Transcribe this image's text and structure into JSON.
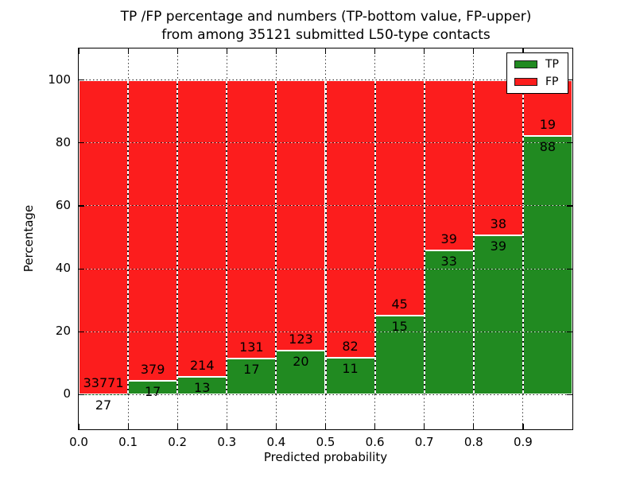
{
  "title": {
    "line1": "TP /FP percentage and numbers (TP-bottom value, FP-upper)",
    "line2": "from among 35121 submitted L50-type contacts"
  },
  "chart_data": {
    "type": "bar",
    "stacked": true,
    "title": "TP /FP percentage and numbers (TP-bottom value, FP-upper)\nfrom among 35121 submitted L50-type contacts",
    "xlabel": "Predicted probability",
    "ylabel": "Percentage",
    "xlim": [
      0.0,
      1.0
    ],
    "ylim": [
      -11,
      110
    ],
    "grid": true,
    "legend_position": "upper right",
    "total_contacts": 35121,
    "categories": [
      "0.0-0.1",
      "0.1-0.2",
      "0.2-0.3",
      "0.3-0.4",
      "0.4-0.5",
      "0.5-0.6",
      "0.6-0.7",
      "0.7-0.8",
      "0.8-0.9",
      "0.9-1.0"
    ],
    "x_tick_labels": [
      "0.0",
      "0.1",
      "0.2",
      "0.3",
      "0.4",
      "0.5",
      "0.6",
      "0.7",
      "0.8",
      "0.9"
    ],
    "y_ticks": [
      0,
      20,
      40,
      60,
      80,
      100
    ],
    "series": [
      {
        "name": "TP",
        "color": "#218a21",
        "counts": [
          27,
          17,
          13,
          17,
          20,
          11,
          15,
          33,
          39,
          88
        ]
      },
      {
        "name": "FP",
        "color": "#fc1d1d",
        "counts": [
          33771,
          379,
          214,
          131,
          123,
          82,
          45,
          39,
          38,
          19
        ]
      }
    ],
    "tp_percent": [
      0.08,
      4.29,
      5.73,
      11.49,
      13.99,
      11.83,
      25.0,
      45.83,
      50.65,
      82.24
    ],
    "fp_percent": [
      99.92,
      95.71,
      94.27,
      88.51,
      86.01,
      88.17,
      75.0,
      54.17,
      49.35,
      17.76
    ],
    "legend": [
      {
        "label": "TP",
        "color": "#218a21"
      },
      {
        "label": "FP",
        "color": "#fc1d1d"
      }
    ]
  }
}
